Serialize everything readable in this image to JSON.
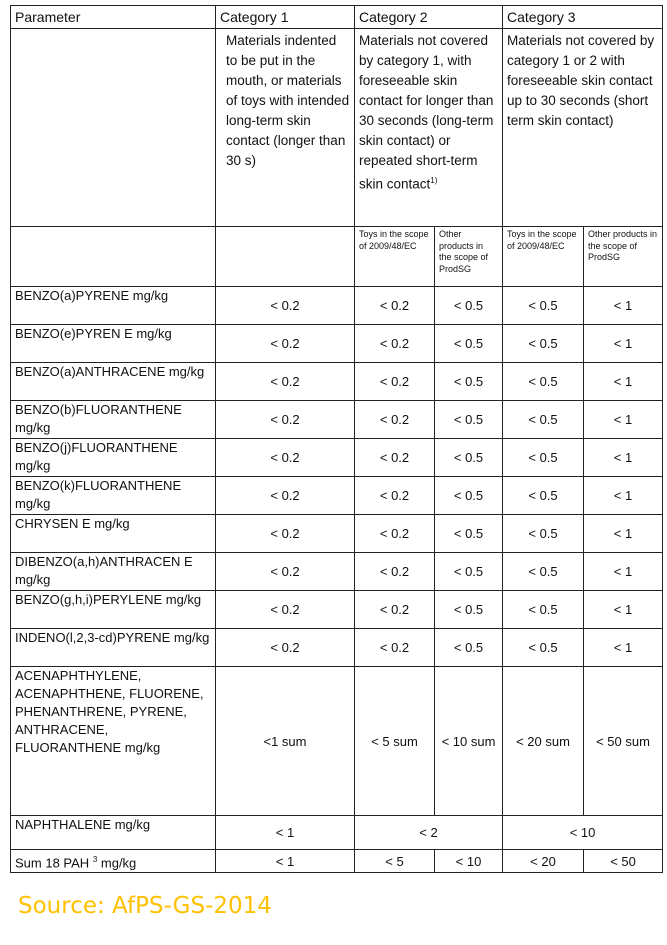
{
  "header": {
    "parameter": "Parameter",
    "categories": [
      "Category 1",
      "Category 2",
      "Category 3"
    ]
  },
  "descriptions": [
    "Materials indented to be put in the mouth, or materials of toys with intended long-term skin contact (longer than 30 s)",
    "Materials not covered by category 1, with foreseeable skin contact for longer than 30 seconds (long-term skin contact) or repeated short-term skin contact",
    "Materials not covered by category 1 or 2 with foreseeable skin contact up to 30 seconds (short term skin contact)"
  ],
  "desc2_footnote": "1)",
  "subheaders": {
    "toys": "Toys in the scope of 2009/48/EC",
    "other": "Other products in the scope of ProdSG"
  },
  "rows": [
    {
      "param": "BENZO(a)PYRENE mg/kg",
      "values": [
        "< 0.2",
        "< 0.2",
        "< 0.5",
        "< 0.5",
        "< 1"
      ]
    },
    {
      "param": "BENZO(e)PYREN E mg/kg",
      "values": [
        "< 0.2",
        "< 0.2",
        "< 0.5",
        "< 0.5",
        "< 1"
      ]
    },
    {
      "param": "BENZO(a)ANTHRACENE mg/kg",
      "values": [
        "< 0.2",
        "< 0.2",
        "< 0.5",
        "< 0.5",
        "< 1"
      ]
    },
    {
      "param": "BENZO(b)FLUORANTHENE mg/kg",
      "values": [
        "< 0.2",
        "< 0.2",
        "< 0.5",
        "< 0.5",
        "< 1"
      ]
    },
    {
      "param": "BENZO(j)FLUORANTHENE mg/kg",
      "values": [
        "< 0.2",
        "< 0.2",
        "< 0.5",
        "< 0.5",
        "< 1"
      ]
    },
    {
      "param": "BENZO(k)FLUORANTHENE mg/kg",
      "values": [
        "< 0.2",
        "< 0.2",
        "< 0.5",
        "< 0.5",
        "< 1"
      ]
    },
    {
      "param": "CHRYSEN E mg/kg",
      "values": [
        "< 0.2",
        "< 0.2",
        "< 0.5",
        "< 0.5",
        "< 1"
      ]
    },
    {
      "param": "DIBENZO(a,h)ANTHRACEN E mg/kg",
      "values": [
        "< 0.2",
        "< 0.2",
        "< 0.5",
        "< 0.5",
        "< 1"
      ]
    },
    {
      "param": "BENZO(g,h,i)PERYLENE mg/kg",
      "values": [
        "< 0.2",
        "< 0.2",
        "< 0.5",
        "< 0.5",
        "< 1"
      ]
    },
    {
      "param": "INDENO(l,2,3-cd)PYRENE mg/kg",
      "values": [
        "< 0.2",
        "< 0.2",
        "< 0.5",
        "< 0.5",
        "< 1"
      ]
    }
  ],
  "group_row": {
    "param": "ACENAPHTHYLENE, ACENAPHTHENE, FLUORENE, PHENANTHRENE, PYRENE, ANTHRACENE, FLUORANTHENE mg/kg",
    "values": [
      "<1 sum",
      "< 5 sum",
      "< 10 sum",
      "< 20 sum",
      "< 50 sum"
    ]
  },
  "naphthalene_row": {
    "param": "NAPHTHALENE mg/kg",
    "values": [
      "< 1",
      "< 2",
      "< 10"
    ]
  },
  "sum_row": {
    "param": "Sum 18 PAH",
    "param_sup": "3",
    "param_unit": "mg/kg",
    "values": [
      "< 1",
      "< 5",
      "< 10",
      "< 20",
      "< 50"
    ]
  },
  "source": "Source: AfPS-GS-2014",
  "colors": {
    "source": "#ffc000",
    "border": "#222222"
  }
}
